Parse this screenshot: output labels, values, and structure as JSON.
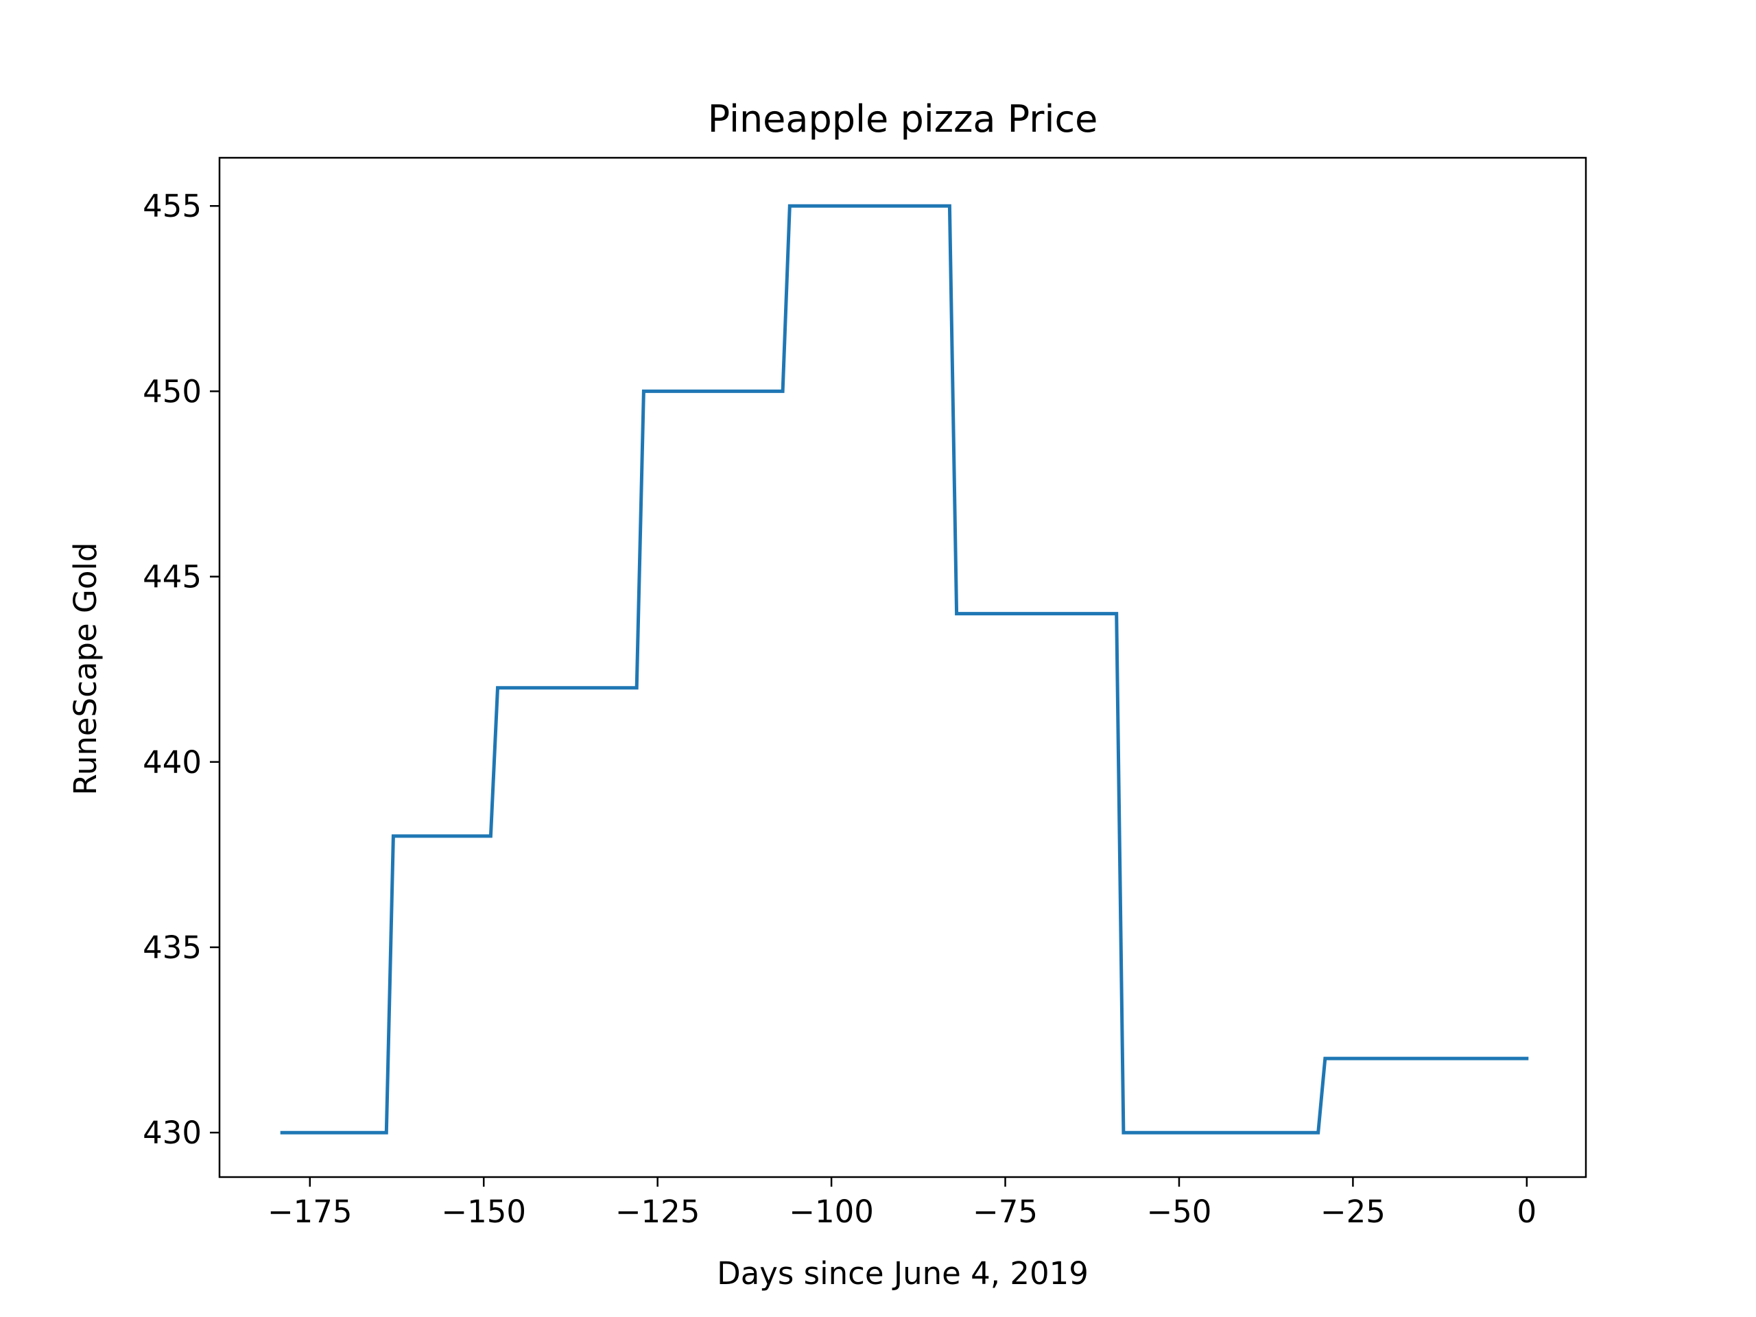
{
  "chart_data": {
    "type": "line",
    "title": "Pineapple pizza Price",
    "xlabel": "Days since June 4, 2019",
    "ylabel": "RuneScape Gold",
    "xlim": [
      -188,
      8.5
    ],
    "ylim": [
      428.8,
      456.3
    ],
    "x_ticks": [
      -175,
      -150,
      -125,
      -100,
      -75,
      -50,
      -25,
      0
    ],
    "x_tick_labels": [
      "−175",
      "−150",
      "−125",
      "−100",
      "−75",
      "−50",
      "−25",
      "0"
    ],
    "y_ticks": [
      430,
      435,
      440,
      445,
      450,
      455
    ],
    "y_tick_labels": [
      "430",
      "435",
      "440",
      "445",
      "450",
      "455"
    ],
    "grid": false,
    "legend": false,
    "line_color": "#1f77b4",
    "series": [
      {
        "x": [
          -179,
          -164,
          -163,
          -149,
          -148,
          -128,
          -127,
          -107,
          -106,
          -83,
          -82,
          -59,
          -58,
          -30,
          -29,
          0
        ],
        "y": [
          430,
          430,
          438,
          438,
          442,
          442,
          450,
          450,
          455,
          455,
          444,
          444,
          430,
          430,
          432,
          432
        ]
      }
    ]
  }
}
